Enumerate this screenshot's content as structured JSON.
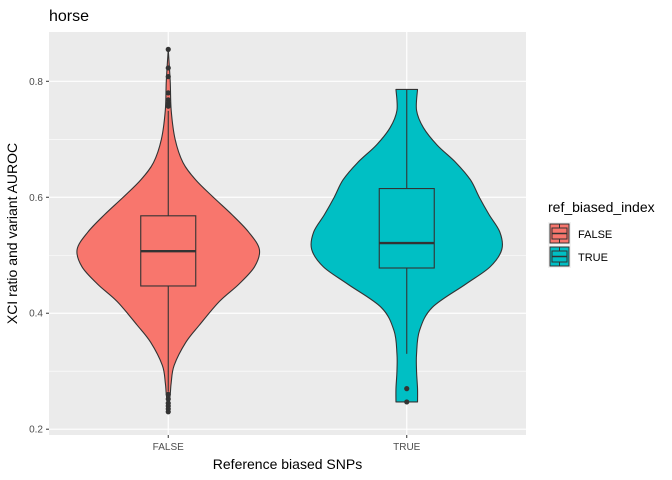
{
  "chart_data": {
    "type": "violin",
    "title": "horse",
    "xlabel": "Reference biased SNPs",
    "ylabel": "XCI ratio and variant AUROC",
    "categories": [
      "FALSE",
      "TRUE"
    ],
    "ylim": [
      0.19,
      0.885
    ],
    "yticks": [
      0.2,
      0.4,
      0.6,
      0.8
    ],
    "ytick_labels": [
      "0.2",
      "0.4",
      "0.6",
      "0.8"
    ],
    "grid": true,
    "legend": {
      "title": "ref_biased_index",
      "position": "right",
      "entries": [
        {
          "label": "FALSE",
          "color": "#F8766D"
        },
        {
          "label": "TRUE",
          "color": "#00BFC4"
        }
      ]
    },
    "groups": [
      {
        "name": "FALSE",
        "color": "#F8766D",
        "box": {
          "q1": 0.447,
          "median": 0.507,
          "q3": 0.568,
          "whisker_low": 0.265,
          "whisker_high": 0.749
        },
        "outliers": [
          0.855,
          0.823,
          0.808,
          0.78,
          0.768,
          0.762,
          0.757,
          0.26,
          0.252,
          0.245,
          0.24,
          0.235,
          0.23
        ],
        "violin_profile": [
          {
            "y": 0.23,
            "w": 0.0
          },
          {
            "y": 0.26,
            "w": 0.02
          },
          {
            "y": 0.28,
            "w": 0.03
          },
          {
            "y": 0.31,
            "w": 0.06
          },
          {
            "y": 0.35,
            "w": 0.18
          },
          {
            "y": 0.38,
            "w": 0.32
          },
          {
            "y": 0.42,
            "w": 0.52
          },
          {
            "y": 0.45,
            "w": 0.72
          },
          {
            "y": 0.48,
            "w": 0.88
          },
          {
            "y": 0.51,
            "w": 0.93
          },
          {
            "y": 0.54,
            "w": 0.82
          },
          {
            "y": 0.57,
            "w": 0.65
          },
          {
            "y": 0.6,
            "w": 0.46
          },
          {
            "y": 0.63,
            "w": 0.28
          },
          {
            "y": 0.66,
            "w": 0.15
          },
          {
            "y": 0.7,
            "w": 0.07
          },
          {
            "y": 0.75,
            "w": 0.03
          },
          {
            "y": 0.8,
            "w": 0.02
          },
          {
            "y": 0.855,
            "w": 0.0
          }
        ]
      },
      {
        "name": "TRUE",
        "color": "#00BFC4",
        "box": {
          "q1": 0.478,
          "median": 0.521,
          "q3": 0.615,
          "whisker_low": 0.33,
          "whisker_high": 0.786
        },
        "outliers": [
          0.27,
          0.247
        ],
        "violin_profile": [
          {
            "y": 0.247,
            "w": 0.11
          },
          {
            "y": 0.27,
            "w": 0.11
          },
          {
            "y": 0.3,
            "w": 0.1
          },
          {
            "y": 0.33,
            "w": 0.1
          },
          {
            "y": 0.37,
            "w": 0.13
          },
          {
            "y": 0.41,
            "w": 0.26
          },
          {
            "y": 0.45,
            "w": 0.6
          },
          {
            "y": 0.48,
            "w": 0.85
          },
          {
            "y": 0.51,
            "w": 0.97
          },
          {
            "y": 0.54,
            "w": 0.95
          },
          {
            "y": 0.57,
            "w": 0.84
          },
          {
            "y": 0.6,
            "w": 0.74
          },
          {
            "y": 0.63,
            "w": 0.65
          },
          {
            "y": 0.66,
            "w": 0.5
          },
          {
            "y": 0.69,
            "w": 0.31
          },
          {
            "y": 0.72,
            "w": 0.17
          },
          {
            "y": 0.75,
            "w": 0.1
          },
          {
            "y": 0.786,
            "w": 0.11
          }
        ]
      }
    ]
  }
}
